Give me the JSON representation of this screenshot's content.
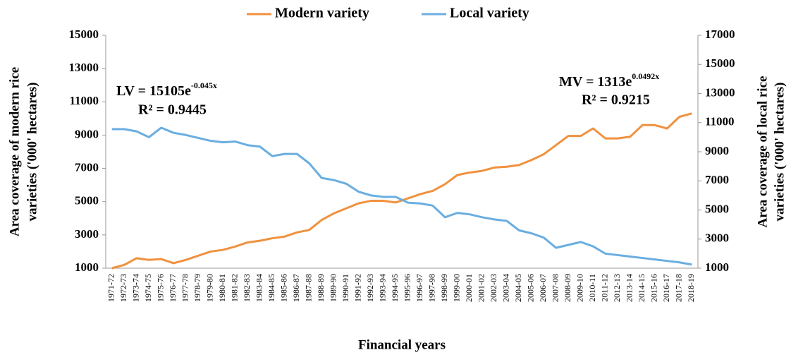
{
  "chart_data": {
    "type": "line",
    "x_label": "Financial years",
    "y_label": [
      "Area coverage of modern rice",
      "varieties ('000' hectares)"
    ],
    "y2_label": [
      "Area coverage of local rice",
      "varieties ('000' hectares)"
    ],
    "categories": [
      "1971-72",
      "1972-73",
      "1973-74",
      "1974-75",
      "1975-76",
      "1976-77",
      "1977-78",
      "1978-79",
      "1979-80",
      "1980-81",
      "1981-82",
      "1982-83",
      "1983-84",
      "1984-85",
      "1985-86",
      "1986-87",
      "1987-88",
      "1988-89",
      "1989-90",
      "1990-91",
      "1991-92",
      "1992-93",
      "1993-94",
      "1994-95",
      "1995-96",
      "1996-97",
      "1997-98",
      "1998-99",
      "1999-00",
      "2000-01",
      "2001-02",
      "2002-03",
      "2003-04",
      "2004-05",
      "2005-06",
      "2006-07",
      "2007-08",
      "2008-09",
      "2009-10",
      "2010-11",
      "2011-12",
      "2012-13",
      "2013-14",
      "2014-15",
      "2015-16",
      "2016-17",
      "2017-18",
      "2018-19"
    ],
    "series": [
      {
        "name": "Modern variety",
        "color": "#f0913f",
        "values": [
          1000,
          1200,
          1600,
          1500,
          1550,
          1300,
          1500,
          1750,
          2000,
          2100,
          2300,
          2550,
          2650,
          2800,
          2900,
          3150,
          3300,
          3900,
          4300,
          4600,
          4900,
          5050,
          5050,
          4950,
          5200,
          5450,
          5650,
          6050,
          6600,
          6750,
          6850,
          7050,
          7100,
          7200,
          7500,
          7850,
          8400,
          8950,
          8950,
          9400,
          8800,
          8800,
          8900,
          9600,
          9600,
          9400,
          10100,
          10300
        ]
      },
      {
        "name": "Local variety",
        "color": "#6aaee0",
        "axis": "y2",
        "values": [
          10550,
          10550,
          10400,
          10000,
          10650,
          10300,
          10150,
          9950,
          9750,
          9650,
          9700,
          9450,
          9350,
          8700,
          8850,
          8850,
          8200,
          7200,
          7050,
          6800,
          6250,
          6000,
          5900,
          5900,
          5500,
          5450,
          5300,
          4500,
          4800,
          4700,
          4500,
          4350,
          4250,
          3600,
          3400,
          3100,
          2400,
          2600,
          2800,
          2500,
          2000,
          1900,
          1800,
          1700,
          1600,
          1500,
          1400,
          1250
        ]
      }
    ],
    "ylim": [
      1000,
      15000
    ],
    "yticks": [
      1000,
      3000,
      5000,
      7000,
      9000,
      11000,
      13000,
      15000
    ],
    "y2lim": [
      1000,
      17000
    ],
    "y2ticks": [
      1000,
      3000,
      5000,
      7000,
      9000,
      11000,
      13000,
      15000,
      17000
    ],
    "annotations": [
      {
        "text": "LV = 15105e",
        "sup": "-0.045x"
      },
      {
        "text": "R² = 0.9445"
      },
      {
        "text": "MV = 1313e",
        "sup": "0.0492x"
      },
      {
        "text": "R² = 0.9215"
      }
    ]
  }
}
